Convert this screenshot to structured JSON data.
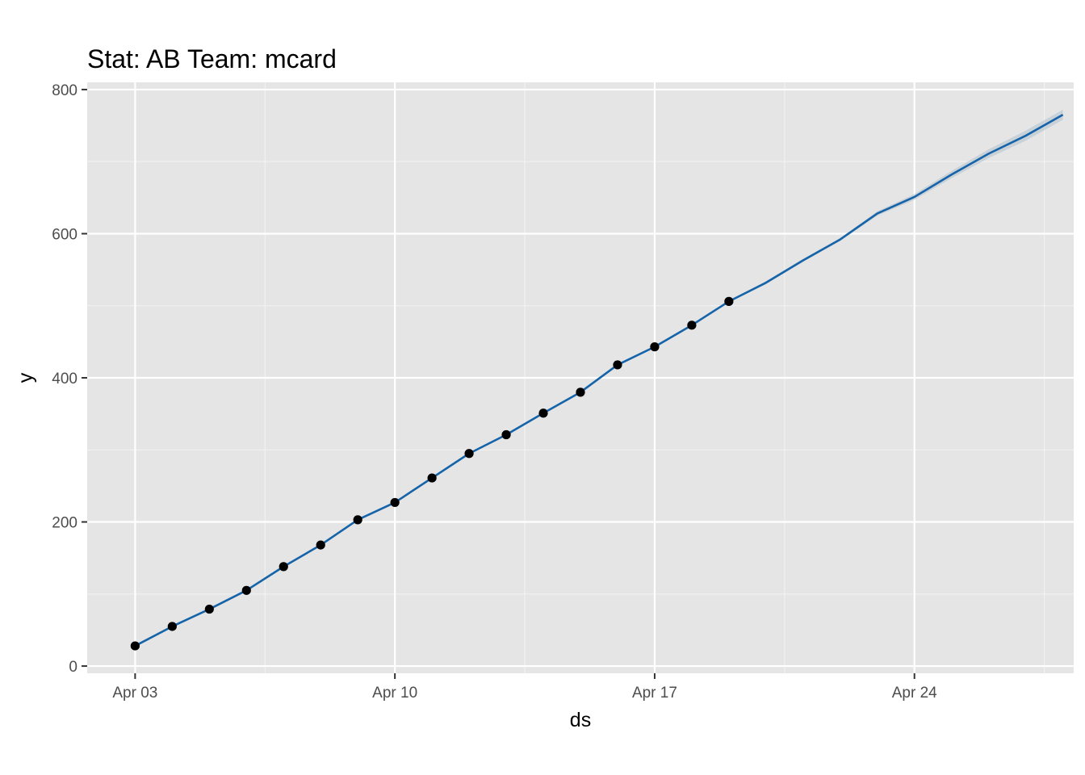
{
  "chart_data": {
    "type": "line",
    "title": "Stat: AB Team: mcard",
    "xlabel": "ds",
    "ylabel": "y",
    "x_ticks": [
      "Apr 03",
      "Apr 10",
      "Apr 17",
      "Apr 24"
    ],
    "y_ticks": [
      0,
      200,
      400,
      600,
      800
    ],
    "xlim": [
      "2021-04-01 17:00",
      "2021-04-28 07:00"
    ],
    "ylim": [
      -10,
      810
    ],
    "grid": true,
    "legend": "none",
    "colors": {
      "panel": "#e5e5e5",
      "grid_major": "#ffffff",
      "grid_minor": "#f2f2f2",
      "forecast_line": "#1563a8",
      "uncertainty_band": "#a7b8c8",
      "points": "#000000",
      "tick": "#4d4d4d"
    },
    "series": [
      {
        "kind": "observed points",
        "x": [
          "2021-04-03",
          "2021-04-04",
          "2021-04-05",
          "2021-04-06",
          "2021-04-07",
          "2021-04-08",
          "2021-04-09",
          "2021-04-10",
          "2021-04-11",
          "2021-04-12",
          "2021-04-13",
          "2021-04-14",
          "2021-04-15",
          "2021-04-16",
          "2021-04-17",
          "2021-04-18",
          "2021-04-19"
        ],
        "y": [
          28,
          55,
          79,
          105,
          138,
          168,
          203,
          227,
          261,
          295,
          321,
          351,
          380,
          418,
          443,
          473,
          506
        ]
      },
      {
        "kind": "forecast line",
        "x": [
          "2021-04-03",
          "2021-04-04",
          "2021-04-05",
          "2021-04-06",
          "2021-04-07",
          "2021-04-08",
          "2021-04-09",
          "2021-04-10",
          "2021-04-11",
          "2021-04-12",
          "2021-04-13",
          "2021-04-14",
          "2021-04-15",
          "2021-04-16",
          "2021-04-17",
          "2021-04-18",
          "2021-04-19",
          "2021-04-20",
          "2021-04-21",
          "2021-04-22",
          "2021-04-23",
          "2021-04-24",
          "2021-04-25",
          "2021-04-26",
          "2021-04-27",
          "2021-04-28"
        ],
        "y": [
          28,
          55,
          79,
          105,
          138,
          168,
          203,
          227,
          261,
          295,
          321,
          351,
          380,
          418,
          443,
          473,
          506,
          532,
          563,
          592,
          628,
          651,
          682,
          711,
          736,
          765
        ],
        "lower": [
          28,
          55,
          79,
          105,
          138,
          168,
          203,
          227,
          261,
          295,
          321,
          351,
          380,
          418,
          443,
          473,
          506,
          530,
          561,
          590,
          625,
          647,
          677,
          705,
          729,
          758
        ],
        "upper": [
          28,
          55,
          79,
          105,
          138,
          168,
          203,
          227,
          261,
          295,
          321,
          351,
          380,
          418,
          443,
          473,
          506,
          534,
          565,
          594,
          631,
          655,
          687,
          717,
          743,
          772
        ]
      }
    ]
  }
}
